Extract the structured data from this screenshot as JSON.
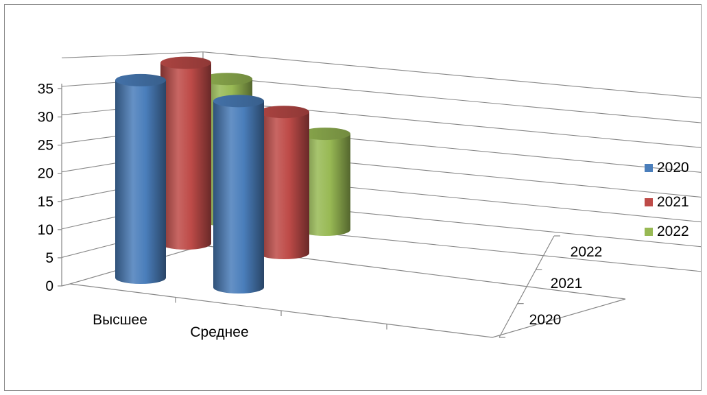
{
  "chart_data": {
    "type": "bar",
    "style": "3d-cylinder",
    "categories": [
      "Высшее",
      "Среднее",
      ""
    ],
    "depth_categories": [
      "2020",
      "2021",
      "2022"
    ],
    "series": [
      {
        "name": "2020",
        "color": "#4a7ebb",
        "values": [
          35,
          33,
          null
        ]
      },
      {
        "name": "2021",
        "color": "#be4b48",
        "values": [
          32,
          25,
          null
        ]
      },
      {
        "name": "2022",
        "color": "#98b954",
        "values": [
          25,
          17,
          null
        ]
      }
    ],
    "yticks": [
      "0",
      "5",
      "10",
      "15",
      "20",
      "25",
      "30",
      "35"
    ],
    "ylim": [
      0,
      35
    ],
    "grid": true,
    "legend_position": "right"
  }
}
